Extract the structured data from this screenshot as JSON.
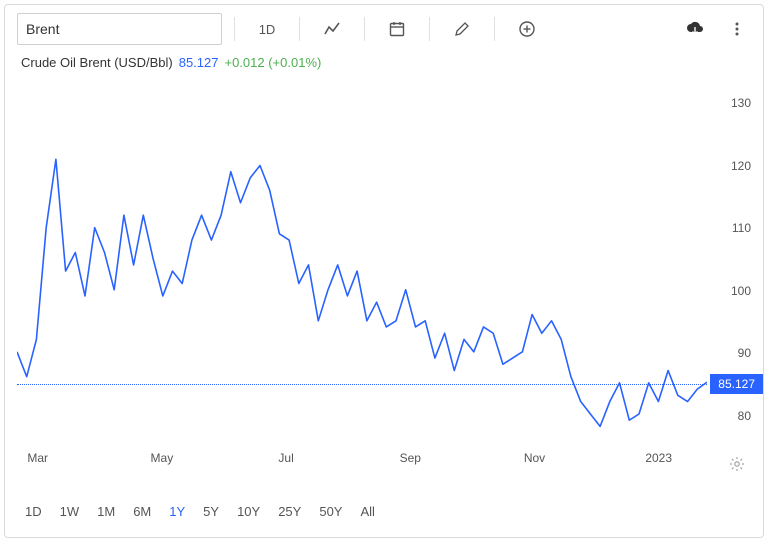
{
  "search": {
    "value": "Brent"
  },
  "toolbar": {
    "timeframe_label": "1D"
  },
  "title": {
    "name": "Crude Oil Brent (USD/Bbl)",
    "price": "85.127",
    "change": "+0.012 (+0.01%)"
  },
  "chart": {
    "type": "line",
    "line_color": "#2962ff",
    "line_width": 1.6,
    "dotted_color": "#2962ff",
    "background": "#ffffff",
    "ylim": [
      75,
      132
    ],
    "y_ticks": [
      80,
      90,
      100,
      110,
      120,
      130
    ],
    "current_value": 85.127,
    "tag_bg": "#2962ff",
    "tag_text": "85.127",
    "x_labels": [
      "Mar",
      "May",
      "Jul",
      "Sep",
      "Nov",
      "2023"
    ],
    "x_positions_pct": [
      3,
      21,
      39,
      57,
      75,
      93
    ],
    "series": [
      90,
      86,
      92,
      110,
      121,
      103,
      106,
      99,
      110,
      106,
      100,
      112,
      104,
      112,
      105,
      99,
      103,
      101,
      108,
      112,
      108,
      112,
      119,
      114,
      118,
      120,
      116,
      109,
      108,
      101,
      104,
      95,
      100,
      104,
      99,
      103,
      95,
      98,
      94,
      95,
      100,
      94,
      95,
      89,
      93,
      87,
      92,
      90,
      94,
      93,
      88,
      89,
      90,
      96,
      93,
      95,
      92,
      86,
      82,
      80,
      78,
      82,
      85,
      79,
      80,
      85,
      82,
      87,
      83,
      82,
      84,
      85.127
    ]
  },
  "ranges": {
    "options": [
      "1D",
      "1W",
      "1M",
      "6M",
      "1Y",
      "5Y",
      "10Y",
      "25Y",
      "50Y",
      "All"
    ],
    "active": "1Y"
  }
}
